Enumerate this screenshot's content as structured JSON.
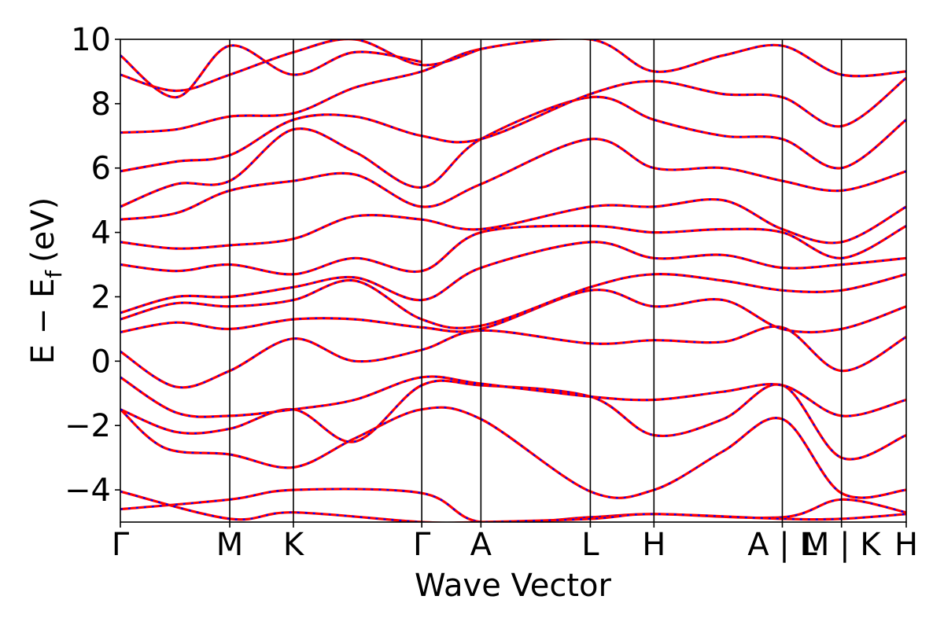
{
  "chart_data": {
    "type": "line",
    "xlabel": "Wave Vector",
    "ylabel": "E − E",
    "ylabel_subscript": "f",
    "ylabel_unit": "(eV)",
    "ylim": [
      -5,
      10
    ],
    "yticks": [
      -4,
      -2,
      0,
      2,
      4,
      6,
      8,
      10
    ],
    "ytick_labels": [
      "−4",
      "−2",
      "0",
      "2",
      "4",
      "6",
      "8",
      "10"
    ],
    "xlim": [
      0,
      7.04
    ],
    "kpath_ticks": [
      {
        "x": 0.0,
        "label": "Γ"
      },
      {
        "x": 0.98,
        "label": "M"
      },
      {
        "x": 1.55,
        "label": "K"
      },
      {
        "x": 2.7,
        "label": "Γ"
      },
      {
        "x": 3.23,
        "label": "A"
      },
      {
        "x": 4.21,
        "label": "L"
      },
      {
        "x": 4.78,
        "label": "H"
      },
      {
        "x": 5.93,
        "label": "A | L"
      },
      {
        "x": 6.46,
        "label": "M | K"
      },
      {
        "x": 7.04,
        "label": "H"
      }
    ],
    "vlines": [
      0.98,
      1.55,
      2.7,
      3.23,
      4.21,
      4.78,
      5.93,
      6.46
    ],
    "grid": false,
    "legend": "none",
    "colors": {
      "series_a": "#ff0000",
      "series_b": "#0000ff"
    },
    "series_styles": [
      {
        "color": "#ff0000",
        "dash": "solid"
      },
      {
        "color": "#0000ff",
        "dash": "dashed"
      }
    ],
    "bands": [
      {
        "x": [
          0.0,
          0.98,
          1.55,
          2.7,
          3.23,
          4.21,
          4.78,
          5.93,
          6.46,
          7.04
        ],
        "y": [
          -4.6,
          -4.3,
          -4.0,
          -4.1,
          -5.0,
          -4.85,
          -4.75,
          -4.85,
          -4.3,
          -4.7
        ]
      },
      {
        "x": [
          0.0,
          0.98,
          1.55,
          2.7,
          3.23,
          4.21,
          4.78,
          5.93,
          6.46,
          7.04
        ],
        "y": [
          -4.05,
          -4.9,
          -4.7,
          -5.0,
          -5.0,
          -4.9,
          -4.75,
          -4.9,
          -4.9,
          -4.75
        ]
      },
      {
        "x": [
          0.0,
          0.4,
          0.98,
          1.55,
          2.1,
          2.7,
          3.23,
          4.21,
          4.78,
          5.4,
          5.93,
          6.46,
          7.04
        ],
        "y": [
          -1.5,
          -2.7,
          -2.9,
          -3.3,
          -2.4,
          -1.5,
          -1.8,
          -4.05,
          -4.0,
          -2.8,
          -1.8,
          -4.1,
          -4.0
        ]
      },
      {
        "x": [
          0.0,
          0.5,
          0.98,
          1.55,
          2.1,
          2.7,
          3.23,
          4.21,
          4.78,
          5.4,
          5.93,
          6.46,
          7.04
        ],
        "y": [
          -1.5,
          -2.2,
          -2.1,
          -1.5,
          -2.5,
          -0.75,
          -0.75,
          -1.1,
          -2.3,
          -1.8,
          -0.75,
          -3.0,
          -2.3
        ]
      },
      {
        "x": [
          0.0,
          0.5,
          0.98,
          1.55,
          2.1,
          2.7,
          3.23,
          4.21,
          4.78,
          5.4,
          5.93,
          6.46,
          7.04
        ],
        "y": [
          -0.5,
          -1.6,
          -1.7,
          -1.5,
          -1.2,
          -0.5,
          -0.7,
          -1.1,
          -1.2,
          -0.95,
          -0.75,
          -1.7,
          -1.2
        ]
      },
      {
        "x": [
          0.0,
          0.5,
          0.98,
          1.55,
          2.1,
          2.7,
          3.23,
          4.21,
          4.78,
          5.4,
          5.93,
          6.46,
          7.04
        ],
        "y": [
          0.3,
          -0.8,
          -0.3,
          0.7,
          0.0,
          0.35,
          0.95,
          0.55,
          0.65,
          0.6,
          1.05,
          -0.3,
          0.75
        ]
      },
      {
        "x": [
          0.0,
          0.5,
          0.98,
          1.55,
          2.1,
          2.7,
          3.23,
          4.21,
          4.78,
          5.4,
          5.93,
          6.46,
          7.04
        ],
        "y": [
          0.9,
          1.2,
          1.0,
          1.3,
          1.3,
          1.05,
          1.0,
          2.2,
          1.7,
          1.9,
          1.0,
          1.0,
          1.7
        ]
      },
      {
        "x": [
          0.0,
          0.5,
          0.98,
          1.55,
          2.1,
          2.7,
          3.23,
          4.21,
          4.78,
          5.4,
          5.93,
          6.46,
          7.04
        ],
        "y": [
          1.3,
          1.8,
          1.7,
          1.9,
          2.5,
          1.3,
          1.1,
          2.3,
          2.7,
          2.5,
          2.2,
          2.2,
          2.7
        ]
      },
      {
        "x": [
          0.0,
          0.5,
          0.98,
          1.55,
          2.1,
          2.7,
          3.23,
          4.21,
          4.78,
          5.4,
          5.93,
          6.46,
          7.04
        ],
        "y": [
          1.5,
          2.0,
          2.0,
          2.3,
          2.6,
          1.9,
          2.9,
          3.7,
          3.2,
          3.3,
          2.9,
          3.0,
          3.2
        ]
      },
      {
        "x": [
          0.0,
          0.5,
          0.98,
          1.55,
          2.1,
          2.7,
          3.23,
          4.21,
          4.78,
          5.4,
          5.93,
          6.46,
          7.04
        ],
        "y": [
          3.0,
          2.8,
          3.0,
          2.7,
          3.2,
          2.8,
          4.0,
          4.2,
          4.0,
          4.1,
          4.0,
          3.2,
          4.2
        ]
      },
      {
        "x": [
          0.0,
          0.5,
          0.98,
          1.55,
          2.1,
          2.7,
          3.23,
          4.21,
          4.78,
          5.4,
          5.93,
          6.46,
          7.04
        ],
        "y": [
          3.7,
          3.5,
          3.6,
          3.8,
          4.5,
          4.4,
          4.1,
          4.8,
          4.8,
          5.0,
          4.1,
          3.7,
          4.8
        ]
      },
      {
        "x": [
          0.0,
          0.5,
          0.98,
          1.55,
          2.1,
          2.7,
          3.23,
          4.21,
          4.78,
          5.4,
          5.93,
          6.46,
          7.04
        ],
        "y": [
          4.4,
          4.6,
          5.3,
          5.6,
          5.8,
          4.8,
          5.5,
          6.9,
          6.0,
          6.0,
          5.6,
          5.3,
          5.9
        ]
      },
      {
        "x": [
          0.0,
          0.5,
          0.98,
          1.55,
          2.1,
          2.7,
          3.23,
          4.21,
          4.78,
          5.4,
          5.93,
          6.46,
          7.04
        ],
        "y": [
          4.8,
          5.5,
          5.6,
          7.2,
          6.5,
          5.4,
          6.9,
          8.2,
          7.5,
          7.0,
          6.9,
          6.0,
          7.5
        ]
      },
      {
        "x": [
          0.0,
          0.5,
          0.98,
          1.55,
          2.1,
          2.7,
          3.23,
          4.21,
          4.78,
          5.4,
          5.93,
          6.46,
          7.04
        ],
        "y": [
          5.9,
          6.2,
          6.4,
          7.5,
          7.6,
          7.0,
          6.9,
          8.3,
          8.7,
          8.3,
          8.2,
          7.3,
          8.8
        ]
      },
      {
        "x": [
          0.0,
          0.5,
          0.98,
          1.55,
          2.1,
          2.7,
          3.23,
          4.21,
          4.78,
          5.4,
          5.93,
          6.46,
          7.04
        ],
        "y": [
          7.1,
          7.2,
          7.6,
          7.7,
          8.5,
          9.0,
          9.7,
          10.0,
          9.0,
          9.5,
          9.8,
          8.9,
          9.0
        ]
      },
      {
        "x": [
          0.0,
          0.5,
          0.98,
          1.55,
          2.1,
          2.7,
          3.23
        ],
        "y": [
          8.9,
          8.4,
          8.9,
          9.6,
          10.0,
          9.2,
          9.7
        ]
      },
      {
        "x": [
          0.0,
          0.5,
          0.98,
          1.55,
          2.1,
          2.7
        ],
        "y": [
          9.5,
          8.2,
          9.8,
          8.9,
          9.6,
          9.3
        ]
      }
    ]
  }
}
